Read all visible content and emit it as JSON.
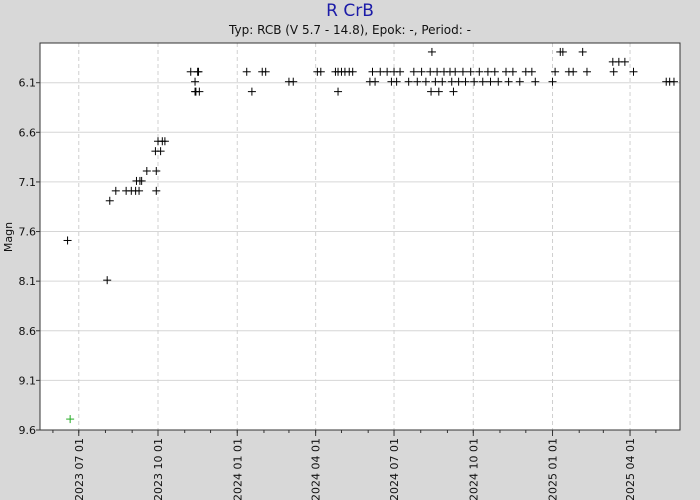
{
  "title": "R CrB",
  "subtitle": "Typ: RCB (V 5.7 - 14.8), Epok: -, Period: -",
  "chart_data": {
    "type": "scatter",
    "title": "R CrB",
    "subtitle": "Typ: RCB (V 5.7 - 14.8), Epok: -, Period: -",
    "xlabel": "",
    "ylabel": "Magn",
    "x_type": "date",
    "xlim": [
      "2023-05-17",
      "2025-05-29"
    ],
    "ylim": [
      9.6,
      5.7
    ],
    "y_inverted": true,
    "y_ticks": [
      6.1,
      6.6,
      7.1,
      7.6,
      8.1,
      8.6,
      9.1,
      9.6
    ],
    "x_ticks": [
      "2023 07 01",
      "2023 10 01",
      "2024 01 01",
      "2024 04 01",
      "2024 07 01",
      "2024 10 01",
      "2025 01 01",
      "2025 04 01"
    ],
    "grid": true,
    "series": [
      {
        "color": "#000000",
        "marker": "+",
        "points": [
          [
            "2023-06-18",
            7.69
          ],
          [
            "2023-08-03",
            8.09
          ],
          [
            "2023-08-06",
            7.29
          ],
          [
            "2023-08-13",
            7.19
          ],
          [
            "2023-08-25",
            7.19
          ],
          [
            "2023-08-31",
            7.19
          ],
          [
            "2023-09-05",
            7.19
          ],
          [
            "2023-09-06",
            7.09
          ],
          [
            "2023-09-09",
            7.19
          ],
          [
            "2023-09-10",
            7.09
          ],
          [
            "2023-09-12",
            7.09
          ],
          [
            "2023-09-18",
            6.99
          ],
          [
            "2023-09-28",
            6.79
          ],
          [
            "2023-09-29",
            7.19
          ],
          [
            "2023-09-29",
            6.99
          ],
          [
            "2023-10-01",
            6.69
          ],
          [
            "2023-10-04",
            6.79
          ],
          [
            "2023-10-06",
            6.69
          ],
          [
            "2023-10-09",
            6.69
          ],
          [
            "2023-11-08",
            5.99
          ],
          [
            "2023-11-13",
            6.09
          ],
          [
            "2023-11-13",
            6.19
          ],
          [
            "2023-11-14",
            6.19
          ],
          [
            "2023-11-16",
            5.99
          ],
          [
            "2023-11-17",
            5.99
          ],
          [
            "2023-11-18",
            6.19
          ],
          [
            "2024-01-12",
            5.99
          ],
          [
            "2024-01-18",
            6.19
          ],
          [
            "2024-01-30",
            5.99
          ],
          [
            "2024-02-03",
            5.99
          ],
          [
            "2024-03-01",
            6.09
          ],
          [
            "2024-03-06",
            6.09
          ],
          [
            "2024-04-03",
            5.99
          ],
          [
            "2024-04-07",
            5.99
          ],
          [
            "2024-04-24",
            5.99
          ],
          [
            "2024-04-27",
            6.19
          ],
          [
            "2024-04-27",
            5.99
          ],
          [
            "2024-05-01",
            5.99
          ],
          [
            "2024-05-05",
            5.99
          ],
          [
            "2024-05-10",
            5.99
          ],
          [
            "2024-05-14",
            5.99
          ],
          [
            "2024-06-03",
            6.09
          ],
          [
            "2024-06-06",
            5.99
          ],
          [
            "2024-06-09",
            6.09
          ],
          [
            "2024-06-15",
            5.99
          ],
          [
            "2024-06-23",
            5.99
          ],
          [
            "2024-06-28",
            6.09
          ],
          [
            "2024-07-01",
            5.99
          ],
          [
            "2024-07-04",
            6.09
          ],
          [
            "2024-07-08",
            5.99
          ],
          [
            "2024-07-18",
            6.09
          ],
          [
            "2024-07-24",
            5.99
          ],
          [
            "2024-07-28",
            6.09
          ],
          [
            "2024-08-02",
            5.99
          ],
          [
            "2024-08-07",
            6.09
          ],
          [
            "2024-08-12",
            5.99
          ],
          [
            "2024-08-13",
            6.19
          ],
          [
            "2024-08-14",
            5.79
          ],
          [
            "2024-08-18",
            6.09
          ],
          [
            "2024-08-20",
            5.99
          ],
          [
            "2024-08-22",
            6.19
          ],
          [
            "2024-08-26",
            6.09
          ],
          [
            "2024-08-28",
            5.99
          ],
          [
            "2024-09-04",
            5.99
          ],
          [
            "2024-09-06",
            6.09
          ],
          [
            "2024-09-08",
            6.19
          ],
          [
            "2024-09-10",
            5.99
          ],
          [
            "2024-09-14",
            6.09
          ],
          [
            "2024-09-19",
            5.99
          ],
          [
            "2024-09-22",
            6.09
          ],
          [
            "2024-09-28",
            5.99
          ],
          [
            "2024-10-02",
            6.09
          ],
          [
            "2024-10-08",
            5.99
          ],
          [
            "2024-10-12",
            6.09
          ],
          [
            "2024-10-18",
            5.99
          ],
          [
            "2024-10-21",
            6.09
          ],
          [
            "2024-10-26",
            5.99
          ],
          [
            "2024-10-30",
            6.09
          ],
          [
            "2024-11-08",
            5.99
          ],
          [
            "2024-11-11",
            6.09
          ],
          [
            "2024-11-16",
            5.99
          ],
          [
            "2024-11-24",
            6.09
          ],
          [
            "2024-12-01",
            5.99
          ],
          [
            "2024-12-08",
            5.99
          ],
          [
            "2024-12-12",
            6.09
          ],
          [
            "2025-01-01",
            6.09
          ],
          [
            "2025-01-04",
            5.99
          ],
          [
            "2025-01-10",
            5.79
          ],
          [
            "2025-01-13",
            5.79
          ],
          [
            "2025-01-20",
            5.99
          ],
          [
            "2025-01-25",
            5.99
          ],
          [
            "2025-02-05",
            5.79
          ],
          [
            "2025-02-10",
            5.99
          ],
          [
            "2025-03-12",
            5.89
          ],
          [
            "2025-03-13",
            5.99
          ],
          [
            "2025-03-19",
            5.89
          ],
          [
            "2025-03-26",
            5.89
          ],
          [
            "2025-04-05",
            5.99
          ],
          [
            "2025-05-13",
            6.09
          ],
          [
            "2025-05-17",
            6.09
          ],
          [
            "2025-05-22",
            6.09
          ]
        ]
      },
      {
        "color": "#22aa22",
        "marker": "+",
        "points": [
          [
            "2023-06-21",
            9.49
          ]
        ]
      }
    ]
  }
}
